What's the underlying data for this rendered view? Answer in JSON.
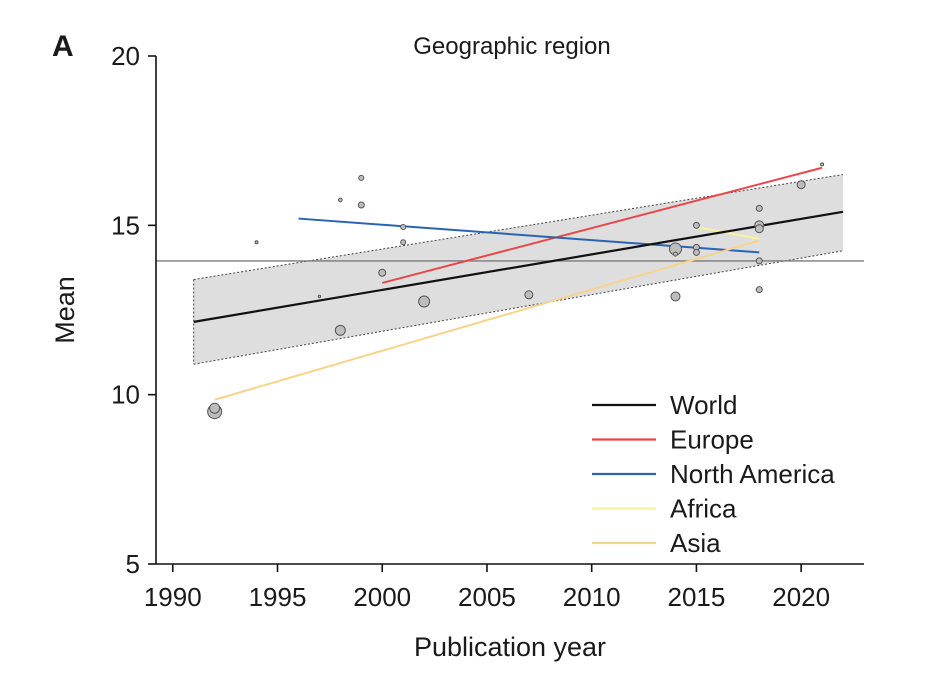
{
  "panel_label": "A",
  "colors": {
    "world": "#111111",
    "europe": "#e8474a",
    "north_america": "#2a64b0",
    "africa": "#f7f3a0",
    "asia": "#f6d48a",
    "band": "#dedede",
    "reference": "#7a7a7a",
    "point": "#bdbdbd"
  },
  "chart_data": {
    "type": "scatter",
    "title": "Geographic region",
    "xlabel": "Publication year",
    "ylabel": "Mean",
    "xlim": [
      1989.2,
      2023
    ],
    "ylim": [
      5,
      20
    ],
    "xticks": [
      1990,
      1995,
      2000,
      2005,
      2010,
      2015,
      2020
    ],
    "yticks": [
      5,
      10,
      15,
      20
    ],
    "reference_line": 13.95,
    "confidence_band": {
      "x": [
        1991,
        2022
      ],
      "upper": [
        13.4,
        16.5
      ],
      "lower": [
        10.9,
        14.25
      ]
    },
    "series": [
      {
        "name": "World",
        "key": "world",
        "x": [
          1991,
          2022
        ],
        "y": [
          12.15,
          15.4
        ]
      },
      {
        "name": "Europe",
        "key": "europe",
        "x": [
          2000,
          2021
        ],
        "y": [
          13.3,
          16.7
        ]
      },
      {
        "name": "North America",
        "key": "north_america",
        "x": [
          1996,
          2018
        ],
        "y": [
          15.2,
          14.2
        ]
      },
      {
        "name": "Africa",
        "key": "africa",
        "x": [
          2015,
          2018
        ],
        "y": [
          14.95,
          14.6
        ]
      },
      {
        "name": "Asia",
        "key": "asia",
        "x": [
          1992,
          2018
        ],
        "y": [
          9.85,
          14.55
        ]
      }
    ],
    "points": [
      {
        "x": 1992,
        "y": 9.5,
        "size": 7
      },
      {
        "x": 1992,
        "y": 9.6,
        "size": 5
      },
      {
        "x": 1994,
        "y": 14.5,
        "size": 1.5
      },
      {
        "x": 1997,
        "y": 12.9,
        "size": 1.2
      },
      {
        "x": 1998,
        "y": 15.75,
        "size": 1.8
      },
      {
        "x": 1998,
        "y": 11.9,
        "size": 5
      },
      {
        "x": 1999,
        "y": 16.4,
        "size": 2.5
      },
      {
        "x": 1999,
        "y": 15.6,
        "size": 3
      },
      {
        "x": 2001,
        "y": 14.95,
        "size": 2.5
      },
      {
        "x": 2001,
        "y": 14.5,
        "size": 2.5
      },
      {
        "x": 2000,
        "y": 13.6,
        "size": 3.5
      },
      {
        "x": 2002,
        "y": 12.75,
        "size": 5.5
      },
      {
        "x": 2007,
        "y": 12.95,
        "size": 4
      },
      {
        "x": 2014,
        "y": 14.3,
        "size": 6
      },
      {
        "x": 2014,
        "y": 14.15,
        "size": 2
      },
      {
        "x": 2014,
        "y": 12.9,
        "size": 4.5
      },
      {
        "x": 2015,
        "y": 15.0,
        "size": 3
      },
      {
        "x": 2015,
        "y": 14.35,
        "size": 3
      },
      {
        "x": 2015,
        "y": 14.2,
        "size": 3
      },
      {
        "x": 2018,
        "y": 15.5,
        "size": 3
      },
      {
        "x": 2018,
        "y": 15.0,
        "size": 4.5
      },
      {
        "x": 2018,
        "y": 14.9,
        "size": 4
      },
      {
        "x": 2018,
        "y": 13.95,
        "size": 3
      },
      {
        "x": 2018,
        "y": 13.1,
        "size": 3
      },
      {
        "x": 2020,
        "y": 16.2,
        "size": 4
      },
      {
        "x": 2021,
        "y": 16.8,
        "size": 1.5
      }
    ]
  }
}
